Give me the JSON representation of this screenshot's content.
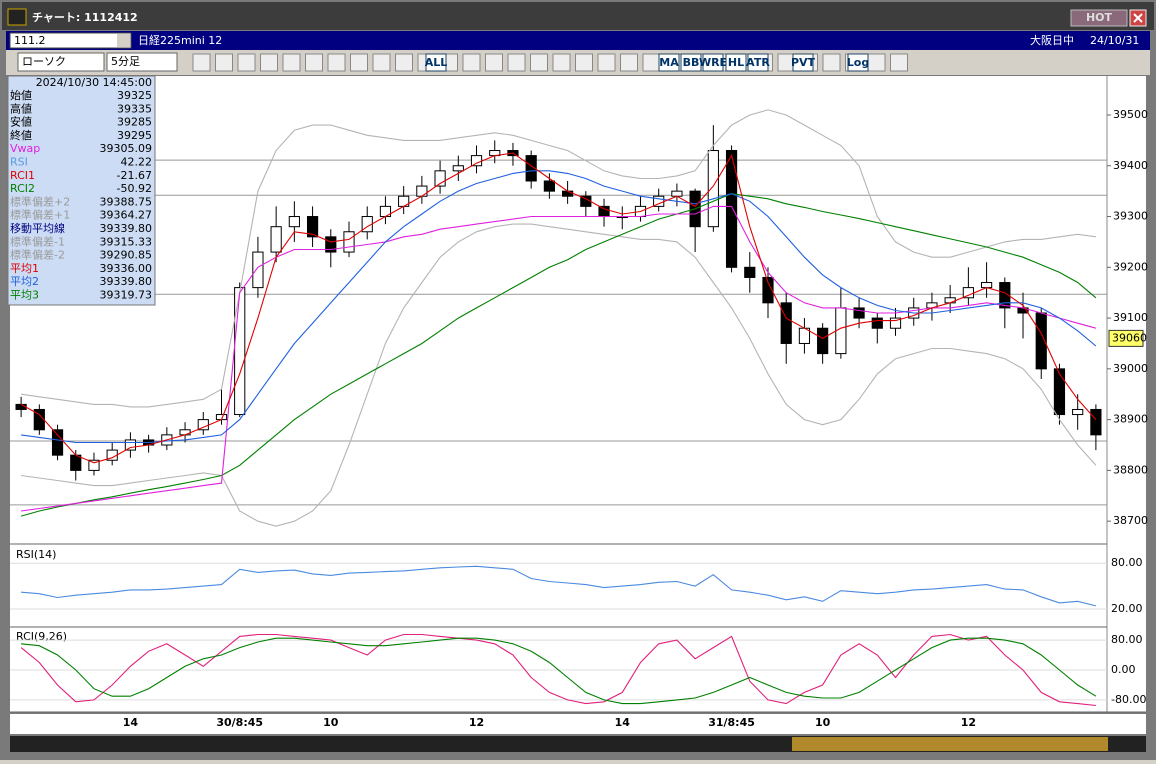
{
  "ui": {
    "window_title": "チャート: 1112412",
    "hot": "HOT",
    "code": "111.2",
    "instrument": "日経225mini 12",
    "session": "大阪日中",
    "date": "24/10/31",
    "chart_kind": "ローソク",
    "interval": "5分足",
    "toolbar_buttons": [
      "ALL",
      "MA",
      "BB",
      "WRE",
      "HL",
      "ATR",
      "PVT",
      "Log"
    ]
  },
  "info_panel": {
    "timestamp": "2024/10/30  14:45:00",
    "rows": [
      {
        "label": "始値",
        "value": "39325",
        "color": "#000000"
      },
      {
        "label": "高値",
        "value": "39335",
        "color": "#000000"
      },
      {
        "label": "安値",
        "value": "39285",
        "color": "#000000"
      },
      {
        "label": "終値",
        "value": "39295",
        "color": "#000000"
      },
      {
        "label": "Vwap",
        "value": "39305.09",
        "color": "#e020e0"
      },
      {
        "label": "RSI",
        "value": "42.22",
        "color": "#5a9ae0"
      },
      {
        "label": "RCI1",
        "value": "-21.67",
        "color": "#e00000"
      },
      {
        "label": "RCI2",
        "value": "-50.92",
        "color": "#008000"
      },
      {
        "label": "標準偏差+2",
        "value": "39388.75",
        "color": "#9a9a9a"
      },
      {
        "label": "標準偏差+1",
        "value": "39364.27",
        "color": "#9a9a9a"
      },
      {
        "label": "移動平均線",
        "value": "39339.80",
        "color": "#000080"
      },
      {
        "label": "標準偏差-1",
        "value": "39315.33",
        "color": "#9a9a9a"
      },
      {
        "label": "標準偏差-2",
        "value": "39290.85",
        "color": "#9a9a9a"
      },
      {
        "label": "平均1",
        "value": "39336.00",
        "color": "#e00000"
      },
      {
        "label": "平均2",
        "value": "39339.80",
        "color": "#2060e0"
      },
      {
        "label": "平均3",
        "value": "39319.73",
        "color": "#008000"
      }
    ]
  },
  "chart_data": {
    "type": "candlestick",
    "categories": [
      null,
      null,
      null,
      null,
      null,
      null,
      "14",
      null,
      null,
      null,
      null,
      null,
      "30/8:45",
      null,
      null,
      null,
      null,
      "10",
      null,
      null,
      null,
      null,
      null,
      null,
      null,
      "12",
      null,
      null,
      null,
      null,
      null,
      null,
      null,
      "14",
      null,
      null,
      null,
      null,
      null,
      "31/8:45",
      null,
      null,
      null,
      null,
      "10",
      null,
      null,
      null,
      null,
      null,
      null,
      null,
      "12",
      null,
      null,
      null,
      null,
      null,
      null,
      null
    ],
    "candles": [
      [
        38930,
        38945,
        38905,
        38920
      ],
      [
        38920,
        38930,
        38870,
        38880
      ],
      [
        38880,
        38890,
        38820,
        38830
      ],
      [
        38830,
        38840,
        38780,
        38800
      ],
      [
        38800,
        38835,
        38790,
        38820
      ],
      [
        38820,
        38855,
        38810,
        38840
      ],
      [
        38840,
        38875,
        38825,
        38860
      ],
      [
        38860,
        38870,
        38835,
        38850
      ],
      [
        38850,
        38885,
        38840,
        38870
      ],
      [
        38870,
        38895,
        38855,
        38880
      ],
      [
        38880,
        38915,
        38870,
        38900
      ],
      [
        38900,
        38960,
        38890,
        38910
      ],
      [
        38910,
        39170,
        38905,
        39160
      ],
      [
        39160,
        39260,
        39140,
        39230
      ],
      [
        39230,
        39320,
        39210,
        39280
      ],
      [
        39280,
        39330,
        39250,
        39300
      ],
      [
        39300,
        39320,
        39240,
        39260
      ],
      [
        39260,
        39275,
        39200,
        39230
      ],
      [
        39230,
        39290,
        39220,
        39270
      ],
      [
        39270,
        39320,
        39255,
        39300
      ],
      [
        39300,
        39340,
        39285,
        39320
      ],
      [
        39320,
        39360,
        39305,
        39340
      ],
      [
        39340,
        39380,
        39325,
        39360
      ],
      [
        39360,
        39410,
        39345,
        39390
      ],
      [
        39390,
        39420,
        39370,
        39400
      ],
      [
        39400,
        39440,
        39385,
        39420
      ],
      [
        39420,
        39450,
        39405,
        39430
      ],
      [
        39430,
        39445,
        39400,
        39420
      ],
      [
        39420,
        39430,
        39355,
        39370
      ],
      [
        39370,
        39385,
        39335,
        39350
      ],
      [
        39350,
        39370,
        39325,
        39340
      ],
      [
        39340,
        39350,
        39300,
        39320
      ],
      [
        39320,
        39335,
        39280,
        39300
      ],
      [
        39300,
        39320,
        39275,
        39300
      ],
      [
        39300,
        39340,
        39290,
        39320
      ],
      [
        39320,
        39355,
        39310,
        39340
      ],
      [
        39340,
        39365,
        39320,
        39350
      ],
      [
        39350,
        39355,
        39230,
        39280
      ],
      [
        39280,
        39480,
        39270,
        39430
      ],
      [
        39430,
        39440,
        39190,
        39200
      ],
      [
        39200,
        39230,
        39150,
        39180
      ],
      [
        39180,
        39200,
        39100,
        39130
      ],
      [
        39130,
        39150,
        39010,
        39050
      ],
      [
        39050,
        39100,
        39030,
        39080
      ],
      [
        39080,
        39090,
        39010,
        39030
      ],
      [
        39030,
        39160,
        39020,
        39120
      ],
      [
        39120,
        39140,
        39080,
        39100
      ],
      [
        39100,
        39110,
        39050,
        39080
      ],
      [
        39080,
        39120,
        39065,
        39100
      ],
      [
        39100,
        39140,
        39085,
        39120
      ],
      [
        39120,
        39150,
        39095,
        39130
      ],
      [
        39130,
        39165,
        39110,
        39140
      ],
      [
        39140,
        39200,
        39125,
        39160
      ],
      [
        39160,
        39210,
        39140,
        39170
      ],
      [
        39170,
        39180,
        39080,
        39120
      ],
      [
        39120,
        39150,
        39060,
        39110
      ],
      [
        39110,
        39120,
        38980,
        39000
      ],
      [
        39000,
        39010,
        38890,
        38910
      ],
      [
        38910,
        38950,
        38880,
        38920
      ],
      [
        38920,
        38930,
        38840,
        38870
      ]
    ],
    "series": [
      {
        "color": "#b4b4b4",
        "values": [
          38950,
          38945,
          38940,
          38935,
          38930,
          38930,
          38925,
          38925,
          38930,
          38935,
          38940,
          38960,
          39150,
          39350,
          39430,
          39470,
          39480,
          39480,
          39470,
          39460,
          39455,
          39450,
          39450,
          39450,
          39455,
          39460,
          39465,
          39460,
          39450,
          39440,
          39430,
          39410,
          39390,
          39380,
          39375,
          39375,
          39380,
          39390,
          39440,
          39480,
          39500,
          39510,
          39500,
          39480,
          39460,
          39440,
          39400,
          39300,
          39250,
          39230,
          39220,
          39220,
          39230,
          39240,
          39250,
          39255,
          39255,
          39260,
          39265,
          39260
        ]
      },
      {
        "color": "#b4b4b4",
        "values": [
          38790,
          38785,
          38780,
          38775,
          38770,
          38770,
          38775,
          38780,
          38785,
          38790,
          38795,
          38790,
          38720,
          38700,
          38690,
          38700,
          38720,
          38760,
          38850,
          38950,
          39050,
          39120,
          39170,
          39220,
          39250,
          39270,
          39280,
          39285,
          39285,
          39280,
          39275,
          39270,
          39265,
          39260,
          39255,
          39255,
          39250,
          39220,
          39170,
          39120,
          39060,
          38990,
          38930,
          38900,
          38890,
          38900,
          38940,
          38990,
          39020,
          39030,
          39040,
          39040,
          39035,
          39030,
          39020,
          39000,
          38960,
          38900,
          38850,
          38810
        ]
      },
      {
        "color": "#008000",
        "values": [
          38710,
          38720,
          38728,
          38735,
          38742,
          38748,
          38755,
          38762,
          38768,
          38775,
          38782,
          38790,
          38810,
          38840,
          38870,
          38900,
          38925,
          38950,
          38970,
          38990,
          39010,
          39030,
          39050,
          39075,
          39100,
          39120,
          39140,
          39160,
          39180,
          39200,
          39215,
          39235,
          39250,
          39265,
          39280,
          39295,
          39305,
          39315,
          39330,
          39345,
          39340,
          39335,
          39325,
          39318,
          39310,
          39303,
          39296,
          39288,
          39280,
          39272,
          39264,
          39256,
          39248,
          39240,
          39230,
          39220,
          39205,
          39190,
          39170,
          39140
        ]
      },
      {
        "color": "#e020e0",
        "values": [
          38720,
          38725,
          38730,
          38735,
          38740,
          38745,
          38750,
          38755,
          38760,
          38765,
          38770,
          38775,
          39150,
          39200,
          39220,
          39235,
          39235,
          39235,
          39240,
          39245,
          39250,
          39260,
          39265,
          39275,
          39280,
          39285,
          39290,
          39295,
          39300,
          39300,
          39300,
          39300,
          39300,
          39300,
          39300,
          39305,
          39305,
          39305,
          39320,
          39320,
          39250,
          39190,
          39150,
          39130,
          39120,
          39120,
          39115,
          39110,
          39110,
          39115,
          39120,
          39120,
          39125,
          39130,
          39125,
          39120,
          39110,
          39100,
          39090,
          39080
        ]
      },
      {
        "color": "#2060e0",
        "values": [
          38870,
          38865,
          38860,
          38855,
          38855,
          38855,
          38855,
          38855,
          38858,
          38860,
          38865,
          38870,
          38900,
          38950,
          39000,
          39050,
          39090,
          39130,
          39170,
          39210,
          39250,
          39280,
          39305,
          39330,
          39350,
          39365,
          39375,
          39385,
          39390,
          39390,
          39385,
          39375,
          39360,
          39350,
          39340,
          39335,
          39330,
          39325,
          39335,
          39345,
          39330,
          39300,
          39260,
          39220,
          39185,
          39160,
          39140,
          39125,
          39115,
          39110,
          39110,
          39115,
          39120,
          39125,
          39130,
          39130,
          39120,
          39100,
          39075,
          39045
        ]
      },
      {
        "color": "#e00000",
        "values": [
          38930,
          38910,
          38870,
          38830,
          38815,
          38825,
          38845,
          38850,
          38860,
          38870,
          38885,
          38900,
          38990,
          39100,
          39220,
          39270,
          39265,
          39250,
          39255,
          39280,
          39300,
          39320,
          39340,
          39365,
          39385,
          39405,
          39420,
          39425,
          39400,
          39375,
          39350,
          39335,
          39315,
          39305,
          39310,
          39325,
          39340,
          39320,
          39360,
          39420,
          39280,
          39170,
          39100,
          39080,
          39060,
          39080,
          39090,
          39095,
          39095,
          39105,
          39120,
          39130,
          39145,
          39160,
          39150,
          39125,
          39070,
          38990,
          38940,
          38900
        ]
      }
    ],
    "ylim": [
      38657,
      39563
    ],
    "yticks": [
      38700,
      38800,
      38900,
      39000,
      39100,
      39200,
      39300,
      39400,
      39500
    ],
    "hlines": [
      39411,
      39342,
      39147,
      38858,
      38732
    ],
    "last_price": 39060,
    "rsi_panel": {
      "title": "RSI(14)",
      "ylim": [
        16,
        100
      ],
      "yticks": [
        {
          "value": 20,
          "label": "20.00"
        },
        {
          "value": 80,
          "label": "80.00"
        }
      ],
      "series": [
        {
          "color": "#4a8ae0",
          "values": [
            42,
            40,
            35,
            38,
            40,
            42,
            45,
            45,
            46,
            48,
            50,
            52,
            72,
            68,
            70,
            71,
            66,
            64,
            67,
            68,
            69,
            70,
            72,
            74,
            75,
            76,
            74,
            72,
            60,
            56,
            54,
            52,
            48,
            50,
            52,
            55,
            56,
            50,
            65,
            45,
            42,
            38,
            32,
            36,
            30,
            44,
            42,
            40,
            42,
            45,
            46,
            48,
            50,
            52,
            46,
            45,
            36,
            28,
            30,
            24
          ]
        }
      ]
    },
    "rci_panel": {
      "title": "RCI(9,26)",
      "ylim": [
        -107,
        107
      ],
      "yticks": [
        {
          "value": -80,
          "label": "-80.00"
        },
        {
          "value": 0,
          "label": "0.00"
        },
        {
          "value": 80,
          "label": "80.00"
        }
      ],
      "series": [
        {
          "color": "#e0207a",
          "values": [
            60,
            20,
            -40,
            -85,
            -80,
            -40,
            10,
            50,
            70,
            40,
            10,
            50,
            90,
            95,
            95,
            90,
            85,
            80,
            60,
            40,
            80,
            95,
            95,
            90,
            85,
            80,
            70,
            40,
            -20,
            -60,
            -80,
            -90,
            -85,
            -60,
            20,
            70,
            80,
            30,
            60,
            90,
            -30,
            -80,
            -90,
            -60,
            -40,
            40,
            70,
            40,
            -20,
            40,
            90,
            95,
            80,
            90,
            40,
            0,
            -60,
            -85,
            -90,
            -95
          ]
        },
        {
          "color": "#008000",
          "values": [
            70,
            65,
            40,
            0,
            -50,
            -70,
            -70,
            -50,
            -20,
            10,
            30,
            40,
            60,
            75,
            85,
            85,
            80,
            75,
            70,
            65,
            65,
            70,
            75,
            80,
            85,
            85,
            80,
            70,
            50,
            20,
            -20,
            -60,
            -80,
            -90,
            -90,
            -85,
            -80,
            -75,
            -60,
            -40,
            -20,
            -40,
            -60,
            -70,
            -75,
            -75,
            -60,
            -30,
            0,
            30,
            60,
            80,
            85,
            85,
            80,
            70,
            40,
            0,
            -40,
            -70
          ]
        }
      ]
    }
  }
}
